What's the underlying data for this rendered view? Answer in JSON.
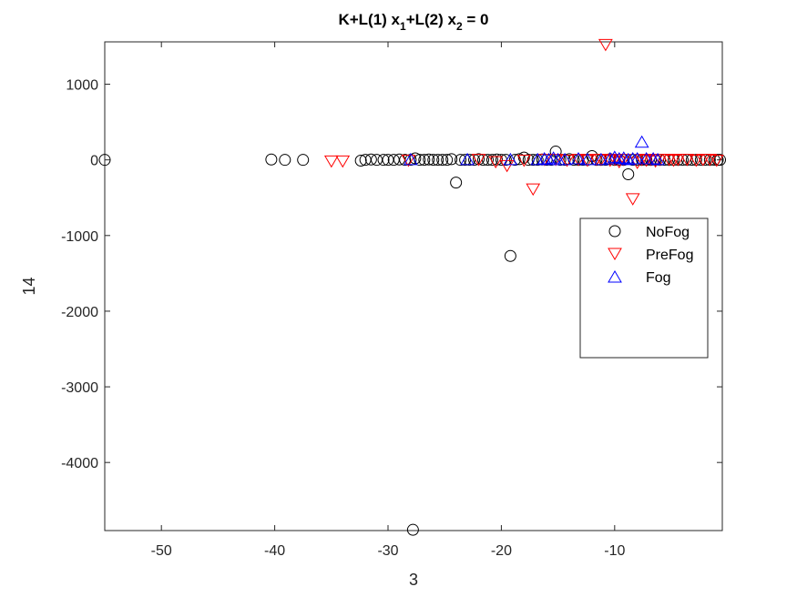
{
  "chart_data": {
    "type": "scatter",
    "title": {
      "main": "K+L(1) x",
      "sub1": "1",
      "mid": "+L(2) x",
      "sub2": "2",
      "end": " = 0"
    },
    "xlabel": "3",
    "ylabel": "14",
    "xlim": [
      -55,
      -0.5
    ],
    "ylim": [
      -4900,
      1560
    ],
    "xticks": [
      -50,
      -40,
      -30,
      -20,
      -10
    ],
    "xtick_labels": [
      "-50",
      "-40",
      "-30",
      "-20",
      "-10"
    ],
    "yticks": [
      -4000,
      -3000,
      -2000,
      -1000,
      0,
      1000
    ],
    "ytick_labels": [
      "-4000",
      "-3000",
      "-2000",
      "-1000",
      "0",
      "1000"
    ],
    "legend_position": "right",
    "grid": false,
    "series": [
      {
        "name": "NoFog",
        "marker": "circle",
        "color": "#000000",
        "points": [
          [
            -55,
            0
          ],
          [
            -40.3,
            5
          ],
          [
            -39.1,
            0
          ],
          [
            -37.5,
            0
          ],
          [
            -32.4,
            -10
          ],
          [
            -32,
            0
          ],
          [
            -31.5,
            5
          ],
          [
            -31,
            0
          ],
          [
            -30.4,
            0
          ],
          [
            -30,
            0
          ],
          [
            -29.5,
            0
          ],
          [
            -29,
            5
          ],
          [
            -28.5,
            0
          ],
          [
            -28,
            0
          ],
          [
            -27.6,
            20
          ],
          [
            -27.2,
            0
          ],
          [
            -26.8,
            0
          ],
          [
            -26.4,
            5
          ],
          [
            -26,
            0
          ],
          [
            -25.6,
            0
          ],
          [
            -25.2,
            0
          ],
          [
            -24.8,
            0
          ],
          [
            -24.4,
            10
          ],
          [
            -24,
            -300
          ],
          [
            -23.6,
            0
          ],
          [
            -23.2,
            0
          ],
          [
            -22.8,
            0
          ],
          [
            -22.4,
            0
          ],
          [
            -22,
            10
          ],
          [
            -21.6,
            0
          ],
          [
            -21.2,
            0
          ],
          [
            -20.8,
            0
          ],
          [
            -20.4,
            5
          ],
          [
            -20,
            0
          ],
          [
            -19.6,
            0
          ],
          [
            -19.2,
            -1270
          ],
          [
            -18.8,
            0
          ],
          [
            -18.4,
            10
          ],
          [
            -18,
            30
          ],
          [
            -17.6,
            0
          ],
          [
            -17.2,
            0
          ],
          [
            -16.8,
            0
          ],
          [
            -16.4,
            5
          ],
          [
            -16,
            0
          ],
          [
            -15.6,
            0
          ],
          [
            -15.2,
            110
          ],
          [
            -14.8,
            0
          ],
          [
            -14.4,
            0
          ],
          [
            -14,
            10
          ],
          [
            -13.6,
            0
          ],
          [
            -13.2,
            0
          ],
          [
            -12.8,
            0
          ],
          [
            -12.4,
            0
          ],
          [
            -12,
            50
          ],
          [
            -11.6,
            0
          ],
          [
            -11.2,
            0
          ],
          [
            -10.8,
            0
          ],
          [
            -10.4,
            10
          ],
          [
            -10,
            0
          ],
          [
            -9.6,
            0
          ],
          [
            -9.2,
            0
          ],
          [
            -8.8,
            -190
          ],
          [
            -8.4,
            0
          ],
          [
            -8,
            0
          ],
          [
            -7.6,
            0
          ],
          [
            -7.2,
            0
          ],
          [
            -6.8,
            0
          ],
          [
            -6.4,
            0
          ],
          [
            -6,
            0
          ],
          [
            -5.6,
            0
          ],
          [
            -5.2,
            0
          ],
          [
            -4.8,
            0
          ],
          [
            -4.4,
            0
          ],
          [
            -4,
            0
          ],
          [
            -3.6,
            0
          ],
          [
            -3.2,
            0
          ],
          [
            -2.8,
            0
          ],
          [
            -2.4,
            0
          ],
          [
            -2,
            0
          ],
          [
            -1.6,
            0
          ],
          [
            -1.2,
            0
          ],
          [
            -0.9,
            0
          ],
          [
            -0.7,
            0
          ],
          [
            -27.8,
            -4890
          ]
        ]
      },
      {
        "name": "PreFog",
        "marker": "triangle-down",
        "color": "#ff0000",
        "points": [
          [
            -35,
            -20
          ],
          [
            -34,
            -20
          ],
          [
            -28.2,
            -10
          ],
          [
            -22,
            0
          ],
          [
            -20.5,
            -30
          ],
          [
            -19.5,
            -80
          ],
          [
            -18,
            -10
          ],
          [
            -17.2,
            -390
          ],
          [
            -16.2,
            0
          ],
          [
            -15.2,
            0
          ],
          [
            -14.2,
            -10
          ],
          [
            -13.2,
            0
          ],
          [
            -12.4,
            -10
          ],
          [
            -11.6,
            0
          ],
          [
            -11.2,
            0
          ],
          [
            -10.8,
            1520
          ],
          [
            -10.4,
            -10
          ],
          [
            -10,
            0
          ],
          [
            -9.6,
            -30
          ],
          [
            -9.2,
            0
          ],
          [
            -8.4,
            -520
          ],
          [
            -8,
            -40
          ],
          [
            -7.6,
            0
          ],
          [
            -7.2,
            -10
          ],
          [
            -6.8,
            0
          ],
          [
            -6.4,
            -20
          ],
          [
            -6,
            0
          ],
          [
            -5.2,
            0
          ],
          [
            -4.8,
            -10
          ],
          [
            -4.4,
            0
          ],
          [
            -3.6,
            0
          ],
          [
            -2.8,
            -10
          ],
          [
            -2.2,
            0
          ],
          [
            -1.6,
            0
          ],
          [
            -1,
            -10
          ]
        ]
      },
      {
        "name": "Fog",
        "marker": "triangle-up",
        "color": "#0000ff",
        "points": [
          [
            -28,
            10
          ],
          [
            -23,
            10
          ],
          [
            -19.2,
            10
          ],
          [
            -16.8,
            10
          ],
          [
            -16.2,
            20
          ],
          [
            -15.8,
            10
          ],
          [
            -15.4,
            30
          ],
          [
            -15,
            10
          ],
          [
            -14.4,
            10
          ],
          [
            -13.2,
            20
          ],
          [
            -12.4,
            10
          ],
          [
            -11.2,
            10
          ],
          [
            -10.4,
            20
          ],
          [
            -10,
            40
          ],
          [
            -9.6,
            20
          ],
          [
            -9.2,
            30
          ],
          [
            -8.8,
            10
          ],
          [
            -8.4,
            20
          ],
          [
            -8,
            20
          ],
          [
            -7.6,
            240
          ],
          [
            -7.2,
            20
          ],
          [
            -6.6,
            20
          ],
          [
            -6.2,
            10
          ]
        ]
      }
    ]
  }
}
